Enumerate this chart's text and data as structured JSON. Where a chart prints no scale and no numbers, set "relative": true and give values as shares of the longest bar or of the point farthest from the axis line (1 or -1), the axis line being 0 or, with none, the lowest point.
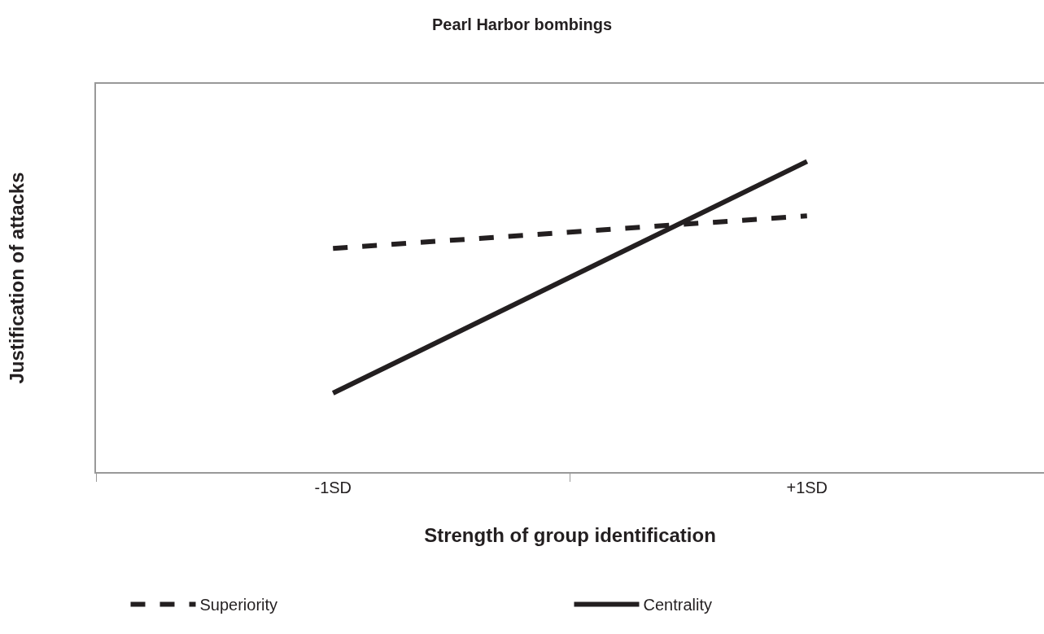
{
  "chart_data": {
    "type": "line",
    "title": "Pearl Harbor bombings",
    "xlabel": "Strength of group identification",
    "ylabel": "Justification of attacks",
    "categories": [
      "-1SD",
      "+1SD"
    ],
    "relative": true,
    "series": [
      {
        "name": "Superiority",
        "color": "#231f20",
        "values": [
          0.72,
          0.825
        ],
        "line_style": "dashed"
      },
      {
        "name": "Centrality",
        "color": "#231f20",
        "values": [
          0.254,
          1
        ],
        "line_style": "solid"
      }
    ],
    "legend": "bottom",
    "marker": "none"
  }
}
